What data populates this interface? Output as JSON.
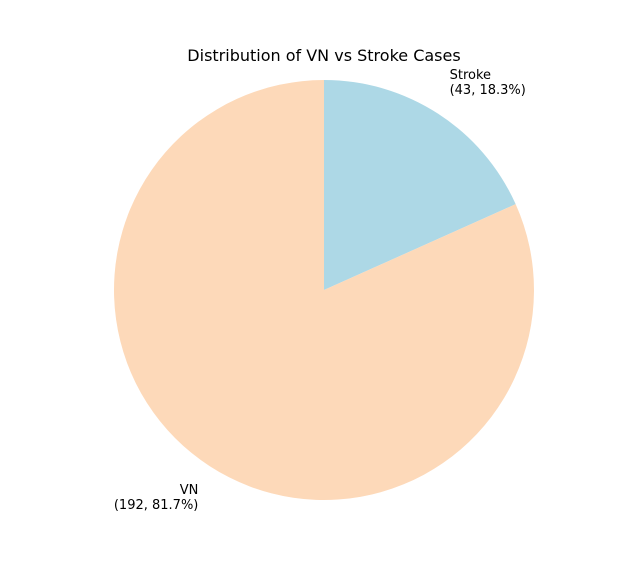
{
  "chart_data": {
    "type": "pie",
    "title": "Distribution of VN vs Stroke Cases",
    "start_angle_deg": 90,
    "direction": "clockwise",
    "slices": [
      {
        "category": "Stroke",
        "value": 43,
        "percent": 18.3,
        "label_line1": "Stroke",
        "label_line2": "(43, 18.3%)",
        "color": "#add8e6"
      },
      {
        "category": "VN",
        "value": 192,
        "percent": 81.7,
        "label_line1": "VN",
        "label_line2": "(192, 81.7%)",
        "color": "#fdd9b9"
      }
    ]
  }
}
